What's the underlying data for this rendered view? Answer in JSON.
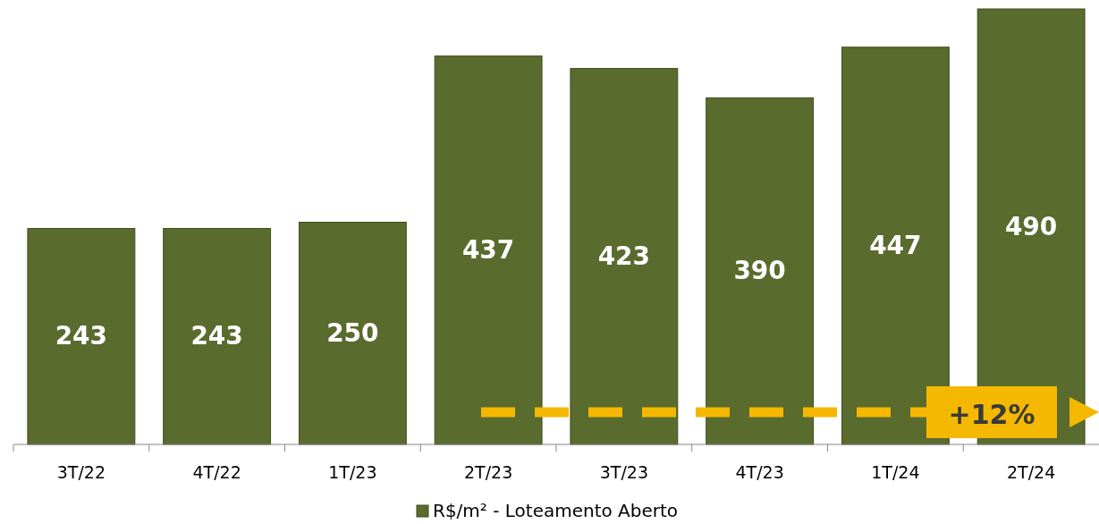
{
  "chart_data": {
    "type": "bar",
    "categories": [
      "3T/22",
      "4T/22",
      "1T/23",
      "2T/23",
      "3T/23",
      "4T/23",
      "1T/24",
      "2T/24"
    ],
    "series": [
      {
        "name": "R$/m² - Loteamento Aberto",
        "color": "#5a6b2e",
        "values": [
          243,
          243,
          250,
          437,
          423,
          390,
          447,
          490
        ]
      }
    ],
    "data_labels": true,
    "legend": "bottom",
    "annotations": [
      "+12%"
    ]
  }
}
